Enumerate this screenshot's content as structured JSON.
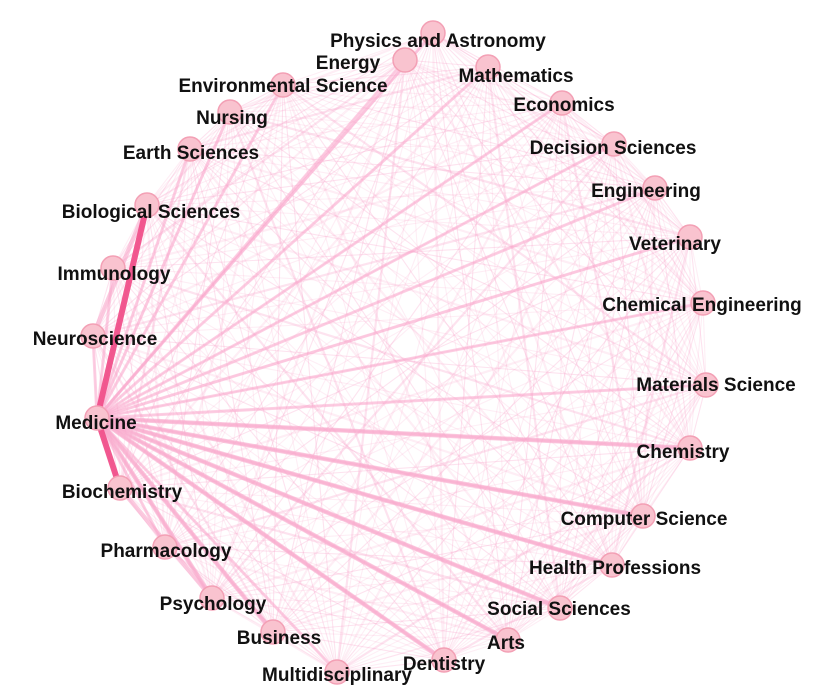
{
  "colors": {
    "background": "#ffffff",
    "edge": "#f9a8cc",
    "edge_strong": "#f0508a",
    "node_fill": "#f9c3cf",
    "node_stroke": "#f3a0b5",
    "label": "#111111"
  },
  "nodes": [
    {
      "id": "physics",
      "label": "Physics and Astronomy"
    },
    {
      "id": "energy",
      "label": "Energy"
    },
    {
      "id": "mathematics",
      "label": "Mathematics"
    },
    {
      "id": "economics",
      "label": "Economics"
    },
    {
      "id": "environmental",
      "label": "Environmental Science"
    },
    {
      "id": "nursing",
      "label": "Nursing"
    },
    {
      "id": "decision",
      "label": "Decision Sciences"
    },
    {
      "id": "earth",
      "label": "Earth Sciences"
    },
    {
      "id": "engineering",
      "label": "Engineering"
    },
    {
      "id": "biological",
      "label": "Biological Sciences"
    },
    {
      "id": "veterinary",
      "label": "Veterinary"
    },
    {
      "id": "immunology",
      "label": "Immunology"
    },
    {
      "id": "chemeng",
      "label": "Chemical Engineering"
    },
    {
      "id": "neuroscience",
      "label": "Neuroscience"
    },
    {
      "id": "materials",
      "label": "Materials Science"
    },
    {
      "id": "medicine",
      "label": "Medicine"
    },
    {
      "id": "chemistry",
      "label": "Chemistry"
    },
    {
      "id": "biochemistry",
      "label": "Biochemistry"
    },
    {
      "id": "computer",
      "label": "Computer Science"
    },
    {
      "id": "pharmacology",
      "label": "Pharmacology"
    },
    {
      "id": "health",
      "label": "Health Professions"
    },
    {
      "id": "psychology",
      "label": "Psychology"
    },
    {
      "id": "social",
      "label": "Social Sciences"
    },
    {
      "id": "business",
      "label": "Business"
    },
    {
      "id": "arts",
      "label": "Arts"
    },
    {
      "id": "dentistry",
      "label": "Dentistry"
    },
    {
      "id": "multidisciplinary",
      "label": "Multidisciplinary"
    }
  ],
  "hub": "medicine",
  "strong_edges": [
    [
      "medicine",
      "biological"
    ],
    [
      "medicine",
      "biochemistry"
    ]
  ],
  "medium_edges": [
    [
      "medicine",
      "social"
    ],
    [
      "medicine",
      "health"
    ],
    [
      "medicine",
      "arts"
    ],
    [
      "medicine",
      "dentistry"
    ],
    [
      "medicine",
      "psychology"
    ],
    [
      "medicine",
      "business"
    ],
    [
      "medicine",
      "computer"
    ],
    [
      "medicine",
      "chemistry"
    ],
    [
      "biochemistry",
      "psychology"
    ],
    [
      "biological",
      "neuroscience"
    ]
  ]
}
